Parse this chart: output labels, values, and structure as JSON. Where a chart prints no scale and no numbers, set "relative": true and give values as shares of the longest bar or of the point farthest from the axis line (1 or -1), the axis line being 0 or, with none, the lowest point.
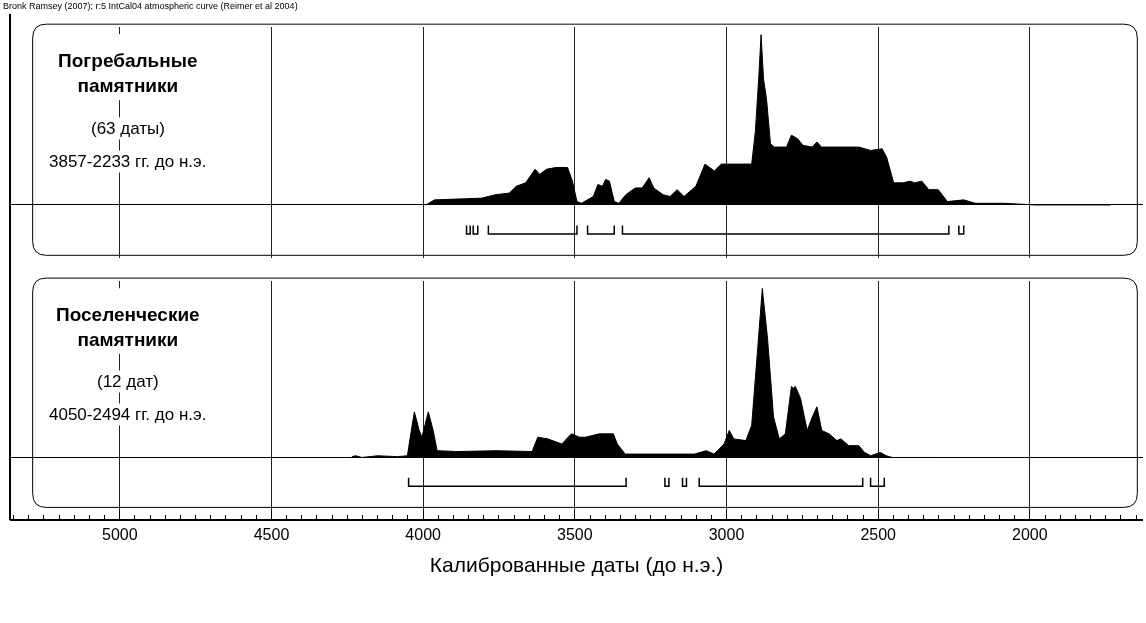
{
  "chart_data": [
    {
      "type": "area",
      "title": "Погребальные памятники",
      "subtitle": "(63 даты)",
      "annotations": [
        "3857-2233 гг. до н.э.",
        "Bronk Ramsey (2007); r:5 IntCal04 atmospheric curve (Reimer et al 2004)"
      ],
      "relative": true,
      "xlim": [
        5362,
        1627
      ],
      "xticks": [
        5000,
        4500,
        4000,
        3500,
        3000,
        2500,
        2000
      ],
      "grid": "x",
      "tick_labels": false,
      "series": [
        {
          "color": "#000000",
          "x": [
            3992,
            3962,
            3808,
            3762,
            3716,
            3693,
            3662,
            3631,
            3616,
            3593,
            3562,
            3524,
            3508,
            3493,
            3478,
            3439,
            3424,
            3409,
            3398,
            3386,
            3370,
            3355,
            3332,
            3301,
            3278,
            3255,
            3240,
            3209,
            3186,
            3163,
            3140,
            3101,
            3071,
            3040,
            3017,
            2917,
            2905,
            2894,
            2886,
            2878,
            2868,
            2855,
            2843,
            2802,
            2786,
            2766,
            2748,
            2717,
            2702,
            2687,
            2564,
            2525,
            2487,
            2472,
            2449,
            2418,
            2395,
            2380,
            2356,
            2333,
            2302,
            2272,
            2218,
            2180,
            2088,
            1980,
            1734
          ],
          "values": [
            0,
            0.03,
            0.04,
            0.06,
            0.07,
            0.11,
            0.13,
            0.21,
            0.18,
            0.21,
            0.22,
            0.22,
            0.14,
            0.02,
            0.01,
            0.05,
            0.12,
            0.11,
            0.15,
            0.14,
            0.02,
            0.01,
            0.06,
            0.1,
            0.1,
            0.16,
            0.1,
            0.06,
            0.05,
            0.09,
            0.05,
            0.11,
            0.24,
            0.2,
            0.24,
            0.24,
            0.43,
            0.74,
            1,
            0.74,
            0.62,
            0.36,
            0.34,
            0.34,
            0.41,
            0.39,
            0.35,
            0.34,
            0.37,
            0.34,
            0.34,
            0.32,
            0.33,
            0.28,
            0.13,
            0.13,
            0.14,
            0.13,
            0.14,
            0.09,
            0.09,
            0.02,
            0.03,
            0.01,
            0.01,
            0,
            0
          ]
        },
        {
          "type": "line",
          "color": "#000000",
          "x": [
            3857,
            3857,
            3845,
            3845,
            null,
            3835,
            3835,
            3820,
            3820,
            null,
            3785,
            3785,
            3493,
            3493,
            null,
            3458,
            3458,
            3370,
            3370,
            null,
            3343,
            3343,
            2267,
            2267,
            null,
            2234,
            2234,
            2218,
            2218
          ],
          "values": [
            -0.12,
            -0.17,
            -0.17,
            -0.12,
            null,
            -0.12,
            -0.17,
            -0.17,
            -0.12,
            null,
            -0.12,
            -0.17,
            -0.17,
            -0.12,
            null,
            -0.12,
            -0.17,
            -0.17,
            -0.12,
            null,
            -0.12,
            -0.17,
            -0.17,
            -0.12,
            null,
            -0.12,
            -0.17,
            -0.17,
            -0.12
          ]
        }
      ]
    },
    {
      "type": "area",
      "title": "Поселенческие памятники",
      "subtitle": "(12 дат)",
      "annotations": [
        "4050-2494 гг. до н.э."
      ],
      "xlabel": "Калиброванные даты (до н.э.)",
      "relative": true,
      "xlim": [
        5362,
        1627
      ],
      "xticks": [
        5000,
        4500,
        4000,
        3500,
        3000,
        2500,
        2000
      ],
      "grid": "x",
      "tick_labels": "x",
      "series": [
        {
          "color": "#000000",
          "x": [
            4235,
            4222,
            4202,
            4150,
            4085,
            4052,
            4039,
            4029,
            4013,
            4004,
            3983,
            3967,
            3954,
            3889,
            3759,
            3641,
            3622,
            3589,
            3543,
            3511,
            3485,
            3465,
            3419,
            3373,
            3360,
            3334,
            3237,
            3106,
            3067,
            3041,
            3008,
            2991,
            2976,
            2936,
            2917,
            2897,
            2882,
            2865,
            2845,
            2826,
            2806,
            2786,
            2780,
            2773,
            2756,
            2734,
            2717,
            2702,
            2686,
            2662,
            2636,
            2623,
            2597,
            2564,
            2545,
            2525,
            2493,
            2473,
            2454,
            2303
          ],
          "values": [
            0.005,
            0.01,
            0,
            0.01,
            0.005,
            0.01,
            0.16,
            0.27,
            0.16,
            0.12,
            0.27,
            0.16,
            0.04,
            0.035,
            0.04,
            0.035,
            0.12,
            0.11,
            0.08,
            0.14,
            0.12,
            0.12,
            0.14,
            0.14,
            0.08,
            0.02,
            0.02,
            0.02,
            0.04,
            0.02,
            0.08,
            0.16,
            0.11,
            0.1,
            0.19,
            0.65,
            1,
            0.71,
            0.24,
            0.11,
            0.14,
            0.42,
            0.41,
            0.42,
            0.35,
            0.16,
            0.24,
            0.3,
            0.16,
            0.14,
            0.1,
            0.11,
            0.07,
            0.07,
            0.03,
            0.01,
            0.03,
            0.01,
            0,
            0
          ]
        },
        {
          "type": "line",
          "color": "#000000",
          "x": [
            4048,
            4048,
            3331,
            3331,
            null,
            3203,
            3203,
            3190,
            3190,
            null,
            3145,
            3145,
            3132,
            3132,
            null,
            3090,
            3090,
            2551,
            2551,
            null,
            2525,
            2525,
            2480,
            2480
          ],
          "values": [
            -0.12,
            -0.17,
            -0.17,
            -0.12,
            null,
            -0.12,
            -0.17,
            -0.17,
            -0.12,
            null,
            -0.12,
            -0.17,
            -0.17,
            -0.12,
            null,
            -0.12,
            -0.17,
            -0.17,
            -0.12,
            null,
            -0.12,
            -0.17,
            -0.17,
            -0.12
          ]
        }
      ]
    }
  ]
}
